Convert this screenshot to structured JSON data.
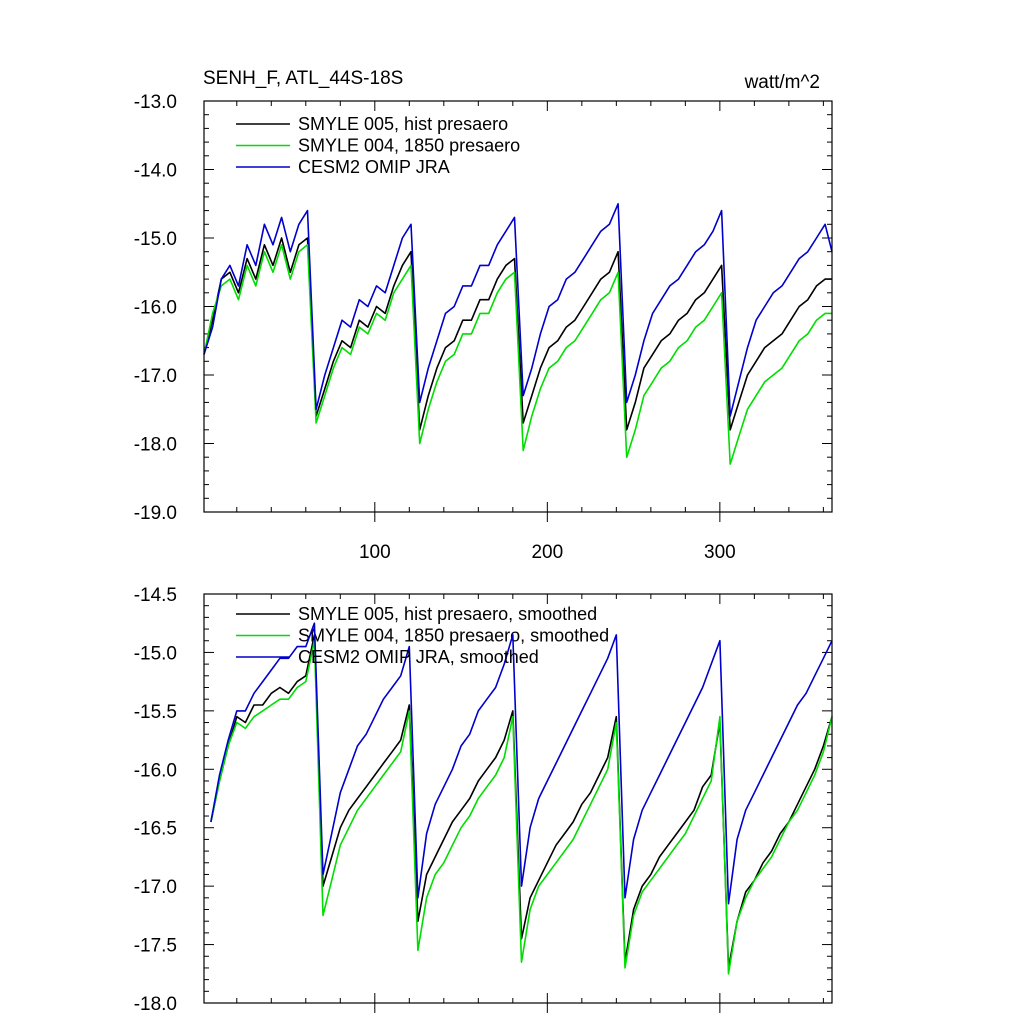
{
  "figure": {
    "title": "SENH_F, ATL_44S-18S",
    "units": "watt/m^2"
  },
  "colors": {
    "hist_presaero": "#000000",
    "presaero_1850": "#00dd00",
    "omip_jra": "#0000cc",
    "axis": "#000000"
  },
  "chart_data": [
    {
      "type": "line",
      "title": "SENH_F, ATL_44S-18S",
      "units": "watt/m^2",
      "xlim": [
        1,
        365
      ],
      "ylim": [
        -19.0,
        -13.0
      ],
      "xticks": [
        100,
        200,
        300
      ],
      "xtick_labels": [
        "100",
        "200",
        "300"
      ],
      "yticks": [
        -19.0,
        -18.0,
        -17.0,
        -16.0,
        -15.0,
        -14.0,
        -13.0
      ],
      "ytick_labels": [
        "-19.0",
        "-18.0",
        "-17.0",
        "-16.0",
        "-15.0",
        "-14.0",
        "-13.0"
      ],
      "legend_position": "top-left",
      "grid": false,
      "x": [
        1,
        6,
        11,
        16,
        21,
        26,
        31,
        36,
        41,
        46,
        51,
        56,
        61,
        66,
        71,
        76,
        81,
        86,
        91,
        96,
        101,
        106,
        111,
        116,
        121,
        126,
        131,
        136,
        141,
        146,
        151,
        156,
        161,
        166,
        171,
        176,
        181,
        186,
        191,
        196,
        201,
        206,
        211,
        216,
        221,
        226,
        231,
        236,
        241,
        246,
        251,
        256,
        261,
        266,
        271,
        276,
        281,
        286,
        291,
        296,
        301,
        306,
        311,
        316,
        321,
        326,
        331,
        336,
        341,
        346,
        351,
        356,
        361,
        365
      ],
      "series": [
        {
          "name": "SMYLE 005, hist presaero",
          "color_key": "hist_presaero",
          "values": [
            -16.7,
            -16.2,
            -15.6,
            -15.5,
            -15.8,
            -15.3,
            -15.6,
            -15.1,
            -15.4,
            -15.0,
            -15.5,
            -15.1,
            -15.0,
            -17.6,
            -17.2,
            -16.8,
            -16.5,
            -16.6,
            -16.2,
            -16.3,
            -16.0,
            -16.1,
            -15.7,
            -15.4,
            -15.2,
            -17.8,
            -17.3,
            -16.9,
            -16.6,
            -16.5,
            -16.2,
            -16.2,
            -15.9,
            -15.9,
            -15.6,
            -15.4,
            -15.3,
            -17.7,
            -17.3,
            -16.9,
            -16.6,
            -16.5,
            -16.3,
            -16.2,
            -16.0,
            -15.8,
            -15.6,
            -15.5,
            -15.2,
            -17.8,
            -17.4,
            -16.9,
            -16.7,
            -16.5,
            -16.4,
            -16.2,
            -16.1,
            -15.9,
            -15.8,
            -15.6,
            -15.4,
            -17.8,
            -17.4,
            -17.0,
            -16.8,
            -16.6,
            -16.5,
            -16.4,
            -16.2,
            -16.0,
            -15.9,
            -15.7,
            -15.6,
            -15.6
          ]
        },
        {
          "name": "SMYLE 004, 1850 presaero",
          "color_key": "presaero_1850",
          "values": [
            -16.7,
            -16.1,
            -15.7,
            -15.6,
            -15.9,
            -15.4,
            -15.7,
            -15.2,
            -15.5,
            -15.1,
            -15.6,
            -15.2,
            -15.1,
            -17.7,
            -17.3,
            -16.9,
            -16.6,
            -16.7,
            -16.3,
            -16.4,
            -16.1,
            -16.2,
            -15.8,
            -15.6,
            -15.4,
            -18.0,
            -17.5,
            -17.1,
            -16.8,
            -16.7,
            -16.4,
            -16.4,
            -16.1,
            -16.1,
            -15.8,
            -15.6,
            -15.5,
            -18.1,
            -17.6,
            -17.2,
            -16.9,
            -16.8,
            -16.6,
            -16.5,
            -16.3,
            -16.1,
            -15.9,
            -15.8,
            -15.5,
            -18.2,
            -17.8,
            -17.3,
            -17.1,
            -16.9,
            -16.8,
            -16.6,
            -16.5,
            -16.3,
            -16.2,
            -16.0,
            -15.8,
            -18.3,
            -17.9,
            -17.5,
            -17.3,
            -17.1,
            -17.0,
            -16.9,
            -16.7,
            -16.5,
            -16.4,
            -16.2,
            -16.1,
            -16.1
          ]
        },
        {
          "name": "CESM2 OMIP JRA",
          "color_key": "omip_jra",
          "values": [
            -16.7,
            -16.3,
            -15.6,
            -15.4,
            -15.7,
            -15.1,
            -15.4,
            -14.8,
            -15.1,
            -14.7,
            -15.2,
            -14.8,
            -14.6,
            -17.5,
            -17.0,
            -16.6,
            -16.2,
            -16.3,
            -15.9,
            -16.0,
            -15.7,
            -15.8,
            -15.4,
            -15.0,
            -14.8,
            -17.4,
            -16.9,
            -16.5,
            -16.1,
            -16.0,
            -15.7,
            -15.7,
            -15.4,
            -15.4,
            -15.1,
            -14.9,
            -14.7,
            -17.3,
            -16.9,
            -16.4,
            -16.0,
            -15.9,
            -15.6,
            -15.5,
            -15.3,
            -15.1,
            -14.9,
            -14.8,
            -14.5,
            -17.4,
            -17.0,
            -16.5,
            -16.1,
            -15.9,
            -15.7,
            -15.6,
            -15.4,
            -15.2,
            -15.1,
            -14.9,
            -14.6,
            -17.6,
            -17.1,
            -16.6,
            -16.2,
            -16.0,
            -15.8,
            -15.7,
            -15.5,
            -15.3,
            -15.2,
            -15.0,
            -14.8,
            -15.2
          ]
        }
      ]
    },
    {
      "type": "line",
      "xlim": [
        1,
        365
      ],
      "ylim": [
        -18.0,
        -14.5
      ],
      "xticks": [
        100,
        200,
        300
      ],
      "yticks": [
        -18.0,
        -17.5,
        -17.0,
        -16.5,
        -16.0,
        -15.5,
        -15.0,
        -14.5
      ],
      "ytick_labels": [
        "-18.0",
        "-17.5",
        "-17.0",
        "-16.5",
        "-16.0",
        "-15.5",
        "-15.0",
        "-14.5"
      ],
      "legend_position": "top-left",
      "grid": false,
      "x": [
        5,
        10,
        15,
        20,
        25,
        30,
        35,
        40,
        45,
        50,
        55,
        60,
        65,
        70,
        75,
        80,
        85,
        90,
        95,
        100,
        105,
        110,
        115,
        120,
        125,
        130,
        135,
        140,
        145,
        150,
        155,
        160,
        165,
        170,
        175,
        180,
        185,
        190,
        195,
        200,
        205,
        210,
        215,
        220,
        225,
        230,
        235,
        240,
        245,
        250,
        255,
        260,
        265,
        270,
        275,
        280,
        285,
        290,
        295,
        300,
        305,
        310,
        315,
        320,
        325,
        330,
        335,
        340,
        345,
        350,
        355,
        360,
        365
      ],
      "series": [
        {
          "name": "SMYLE 005, hist presaero, smoothed",
          "color_key": "hist_presaero",
          "values": [
            -16.45,
            -16.1,
            -15.8,
            -15.55,
            -15.6,
            -15.45,
            -15.45,
            -15.35,
            -15.3,
            -15.35,
            -15.25,
            -15.2,
            -14.85,
            -17.0,
            -16.75,
            -16.5,
            -16.35,
            -16.25,
            -16.15,
            -16.05,
            -15.95,
            -15.85,
            -15.75,
            -15.45,
            -17.3,
            -16.9,
            -16.75,
            -16.6,
            -16.45,
            -16.35,
            -16.25,
            -16.1,
            -16.0,
            -15.9,
            -15.75,
            -15.5,
            -17.45,
            -17.1,
            -16.95,
            -16.8,
            -16.65,
            -16.55,
            -16.45,
            -16.3,
            -16.2,
            -16.05,
            -15.9,
            -15.55,
            -17.65,
            -17.2,
            -17.0,
            -16.9,
            -16.75,
            -16.65,
            -16.55,
            -16.45,
            -16.35,
            -16.15,
            -16.05,
            -15.6,
            -17.7,
            -17.3,
            -17.05,
            -16.95,
            -16.8,
            -16.7,
            -16.55,
            -16.45,
            -16.3,
            -16.15,
            -16.0,
            -15.8,
            -15.55
          ]
        },
        {
          "name": "SMYLE 004, 1850 presaero, smoothed",
          "color_key": "presaero_1850",
          "values": [
            -16.45,
            -16.1,
            -15.8,
            -15.6,
            -15.65,
            -15.55,
            -15.5,
            -15.45,
            -15.4,
            -15.4,
            -15.3,
            -15.25,
            -14.9,
            -17.25,
            -16.95,
            -16.65,
            -16.5,
            -16.35,
            -16.25,
            -16.15,
            -16.05,
            -15.95,
            -15.85,
            -15.5,
            -17.55,
            -17.1,
            -16.9,
            -16.8,
            -16.65,
            -16.5,
            -16.4,
            -16.25,
            -16.15,
            -16.05,
            -15.9,
            -15.55,
            -17.65,
            -17.2,
            -17.0,
            -16.9,
            -16.8,
            -16.7,
            -16.6,
            -16.45,
            -16.3,
            -16.15,
            -16.0,
            -15.6,
            -17.7,
            -17.25,
            -17.05,
            -16.95,
            -16.85,
            -16.75,
            -16.65,
            -16.55,
            -16.4,
            -16.25,
            -16.1,
            -15.55,
            -17.75,
            -17.3,
            -17.1,
            -16.95,
            -16.85,
            -16.75,
            -16.6,
            -16.45,
            -16.35,
            -16.2,
            -16.05,
            -15.85,
            -15.55
          ]
        },
        {
          "name": "CESM2 OMIP JRA, smoothed",
          "color_key": "omip_jra",
          "values": [
            -16.45,
            -16.05,
            -15.75,
            -15.5,
            -15.5,
            -15.35,
            -15.25,
            -15.15,
            -15.05,
            -15.05,
            -14.95,
            -14.95,
            -14.75,
            -16.9,
            -16.55,
            -16.2,
            -16.0,
            -15.8,
            -15.7,
            -15.55,
            -15.4,
            -15.3,
            -15.2,
            -14.95,
            -17.1,
            -16.55,
            -16.3,
            -16.15,
            -16.0,
            -15.8,
            -15.7,
            -15.5,
            -15.4,
            -15.3,
            -15.1,
            -14.85,
            -17.0,
            -16.5,
            -16.25,
            -16.1,
            -15.95,
            -15.8,
            -15.65,
            -15.5,
            -15.35,
            -15.2,
            -15.05,
            -14.85,
            -17.1,
            -16.6,
            -16.35,
            -16.2,
            -16.05,
            -15.9,
            -15.75,
            -15.6,
            -15.45,
            -15.3,
            -15.1,
            -14.9,
            -17.15,
            -16.6,
            -16.35,
            -16.2,
            -16.05,
            -15.9,
            -15.75,
            -15.6,
            -15.45,
            -15.35,
            -15.2,
            -15.05,
            -14.9
          ]
        }
      ]
    }
  ]
}
